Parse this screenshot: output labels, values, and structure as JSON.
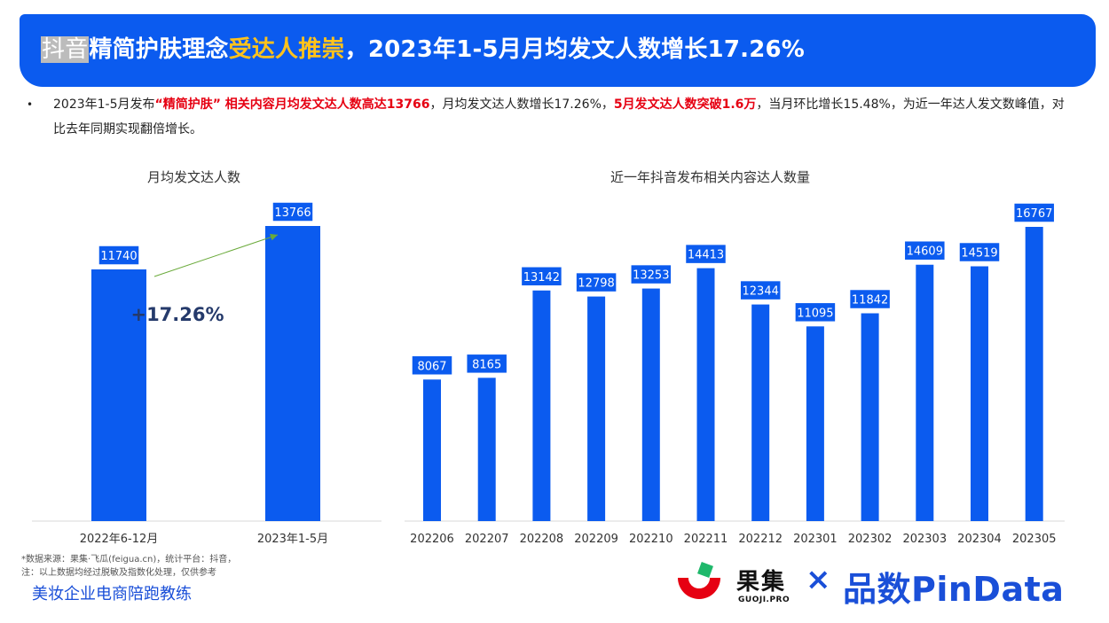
{
  "header": {
    "title_part1": "抖音",
    "title_part2": "精简护肤理念",
    "title_part3": "受达人推崇",
    "title_part4": "，2023年1-5月月均发文人数增长17.26%"
  },
  "bullet": {
    "marker": "•",
    "t1": "2023年1-5月发布",
    "t2": "“精简护肤” 相关内容月均发文达人数高达13766",
    "t3": "，月均发文达人数增长17.26%，",
    "t4": "5月发文达人数突破1.6万",
    "t5": "，当月环比增长15.48%，为近一年达人发文数峰值，对比去年同期实现翻倍增长。"
  },
  "colors": {
    "bar": "#0b5bef",
    "arrow": "#6aaa3a",
    "growth_text": "#253a6b",
    "banner": "#0b5bef",
    "gold": "#ffc21c",
    "red": "#e60012"
  },
  "chart_data": [
    {
      "type": "bar",
      "title": "月均发文达人数",
      "categories": [
        "2022年6-12月",
        "2023年1-5月"
      ],
      "values": [
        11740,
        13766
      ],
      "annotation": "+17.26%",
      "grid": false
    },
    {
      "type": "bar",
      "title": "近一年抖音发布相关内容达人数量",
      "categories": [
        "202206",
        "202207",
        "202208",
        "202209",
        "202210",
        "202211",
        "202212",
        "202301",
        "202302",
        "202303",
        "202304",
        "202305"
      ],
      "values": [
        8067,
        8165,
        13142,
        12798,
        13253,
        14413,
        12344,
        11095,
        11842,
        14609,
        14519,
        16767
      ],
      "grid": false
    }
  ],
  "footer": {
    "note_line1": "*数据来源：果集·飞瓜(feigua.cn)，统计平台：抖音，",
    "note_line2": "注：以上数据均经过脱敏及指数化处理，仅供参考",
    "coach": "美妆企业电商陪跑教练",
    "guoji_name": "果集",
    "guoji_sub": "GUOJI.PRO",
    "cross": "×",
    "pindata": "品数PinData"
  }
}
